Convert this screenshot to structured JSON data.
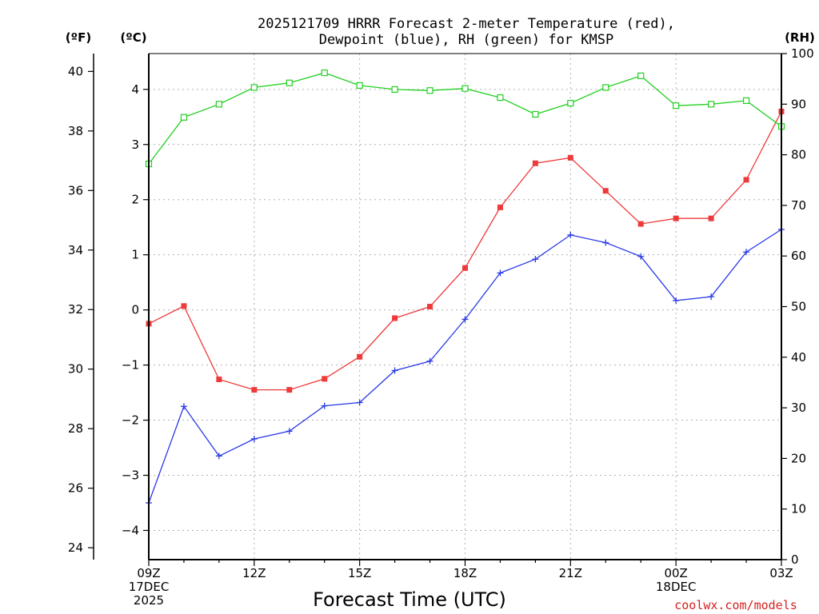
{
  "chart_data": {
    "type": "line",
    "title": [
      "2025121709 HRRR Forecast 2-meter Temperature (red),",
      "Dewpoint (blue), RH (green) for KMSP"
    ],
    "xlabel": "Forecast Time (UTC)",
    "credit": "coolwx.com/models",
    "units": {
      "fahrenheit": "(ºF)",
      "celsius": "(ºC)",
      "rh": "(RH)"
    },
    "x_hours": [
      9,
      10,
      11,
      12,
      13,
      14,
      15,
      16,
      17,
      18,
      19,
      20,
      21,
      22,
      23,
      24,
      25,
      26,
      27
    ],
    "xlim": [
      9,
      27
    ],
    "x_ticks": [
      {
        "hour": 9,
        "lines": [
          "09Z",
          "17DEC",
          "2025"
        ]
      },
      {
        "hour": 12,
        "lines": [
          "12Z"
        ]
      },
      {
        "hour": 15,
        "lines": [
          "15Z"
        ]
      },
      {
        "hour": 18,
        "lines": [
          "18Z"
        ]
      },
      {
        "hour": 21,
        "lines": [
          "21Z"
        ]
      },
      {
        "hour": 24,
        "lines": [
          "00Z",
          "18DEC"
        ]
      },
      {
        "hour": 27,
        "lines": [
          "03Z"
        ]
      }
    ],
    "y_fahrenheit": {
      "range": [
        23.6,
        40.6
      ],
      "ticks": [
        "24",
        "26",
        "28",
        "30",
        "32",
        "34",
        "36",
        "38",
        "40"
      ]
    },
    "y_celsius": {
      "range": [
        -4.53,
        4.65
      ],
      "ticks": [
        "−4",
        "−3",
        "−2",
        "−1",
        "0",
        "1",
        "2",
        "3",
        "4"
      ]
    },
    "y_rh": {
      "range": [
        0,
        100
      ],
      "ticks": [
        "0",
        "10",
        "20",
        "30",
        "40",
        "50",
        "60",
        "70",
        "80",
        "90",
        "100"
      ]
    },
    "grid": true,
    "series": [
      {
        "name": "2-meter Temperature",
        "color": "#ee3a3a",
        "marker": "filled-square",
        "axis": "celsius",
        "values": [
          -0.25,
          0.07,
          -1.26,
          -1.45,
          -1.45,
          -1.25,
          -0.85,
          -0.15,
          0.06,
          0.76,
          1.86,
          2.66,
          2.76,
          2.16,
          1.56,
          1.66,
          1.66,
          2.36,
          3.6
        ]
      },
      {
        "name": "Dewpoint",
        "color": "#2a3ae6",
        "marker": "plus",
        "axis": "celsius",
        "values": [
          -3.5,
          -1.75,
          -2.65,
          -2.34,
          -2.2,
          -1.74,
          -1.68,
          -1.1,
          -0.93,
          -0.17,
          0.67,
          0.92,
          1.36,
          1.22,
          0.97,
          0.17,
          0.24,
          1.05,
          1.46
        ]
      },
      {
        "name": "RH",
        "color": "#22d022",
        "marker": "open-square",
        "axis": "rh",
        "values": [
          78.2,
          87.4,
          90,
          93.3,
          94.2,
          96.2,
          93.7,
          92.9,
          92.7,
          93.1,
          91.3,
          88,
          90.2,
          93.3,
          95.6,
          89.7,
          90,
          90.7,
          85.6
        ]
      }
    ]
  }
}
